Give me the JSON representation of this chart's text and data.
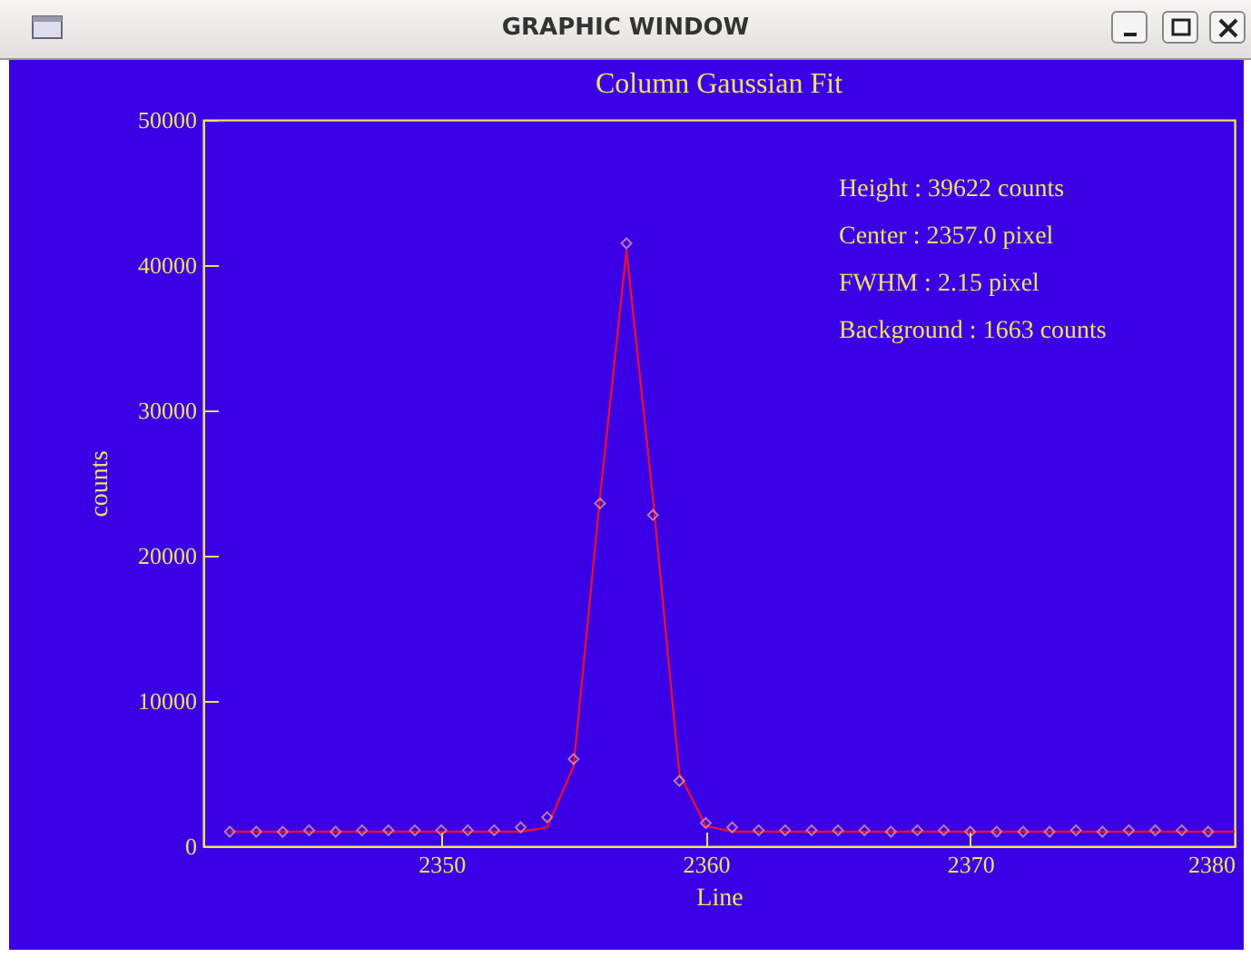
{
  "chart_data": {
    "type": "line",
    "title": "Column Gaussian Fit",
    "xlabel": "Line",
    "ylabel": "counts",
    "annotations": [
      "GRAPHIC WINDOW",
      "Height : 39622 counts",
      "Center : 2357.0 pixel",
      "FWHM : 2.15 pixel",
      "Background : 1663 counts"
    ],
    "xlim": [
      2341,
      2380
    ],
    "xticks": [
      2350,
      2360,
      2370,
      2380
    ],
    "ylim": [
      0,
      50000
    ],
    "yticks": [
      0,
      10000,
      20000,
      30000,
      40000,
      50000
    ],
    "grid": false,
    "series": [
      {
        "type": "line",
        "color": "#e0103a",
        "marker": "none",
        "x": [
          2342,
          2343,
          2344,
          2345,
          2346,
          2347,
          2348,
          2349,
          2350,
          2351,
          2352,
          2353,
          2354,
          2355,
          2356,
          2357,
          2358,
          2359,
          2360,
          2361,
          2362,
          2363,
          2364,
          2365,
          2366,
          2367,
          2368,
          2369,
          2370,
          2371,
          2372,
          2373,
          2374,
          2375,
          2376,
          2377,
          2378,
          2379,
          2380
        ],
        "values": [
          1000,
          1000,
          1000,
          1000,
          1000,
          1000,
          1000,
          1000,
          1000,
          1000,
          1000,
          1000,
          1300,
          5500,
          24000,
          41000,
          24000,
          5000,
          1400,
          1000,
          1000,
          1000,
          1000,
          1000,
          1000,
          1000,
          1000,
          1000,
          1000,
          1000,
          1000,
          1000,
          1000,
          1000,
          1000,
          1000,
          1000,
          1000,
          1000
        ]
      },
      {
        "type": "scatter",
        "color": "#f0a890",
        "marker": "diamond",
        "x": [
          2342,
          2343,
          2344,
          2345,
          2346,
          2347,
          2348,
          2349,
          2350,
          2351,
          2352,
          2353,
          2354,
          2355,
          2356,
          2357,
          2358,
          2359,
          2360,
          2361,
          2362,
          2363,
          2364,
          2365,
          2366,
          2367,
          2368,
          2369,
          2370,
          2371,
          2372,
          2373,
          2374,
          2375,
          2376,
          2377,
          2378,
          2379
        ],
        "values": [
          1000,
          1000,
          1000,
          1100,
          1000,
          1100,
          1100,
          1100,
          1100,
          1100,
          1100,
          1300,
          2000,
          6000,
          23600,
          41500,
          22800,
          4500,
          1600,
          1300,
          1100,
          1100,
          1100,
          1100,
          1100,
          1000,
          1100,
          1100,
          1000,
          1000,
          1000,
          1000,
          1100,
          1000,
          1100,
          1100,
          1100,
          1000
        ]
      }
    ]
  }
}
